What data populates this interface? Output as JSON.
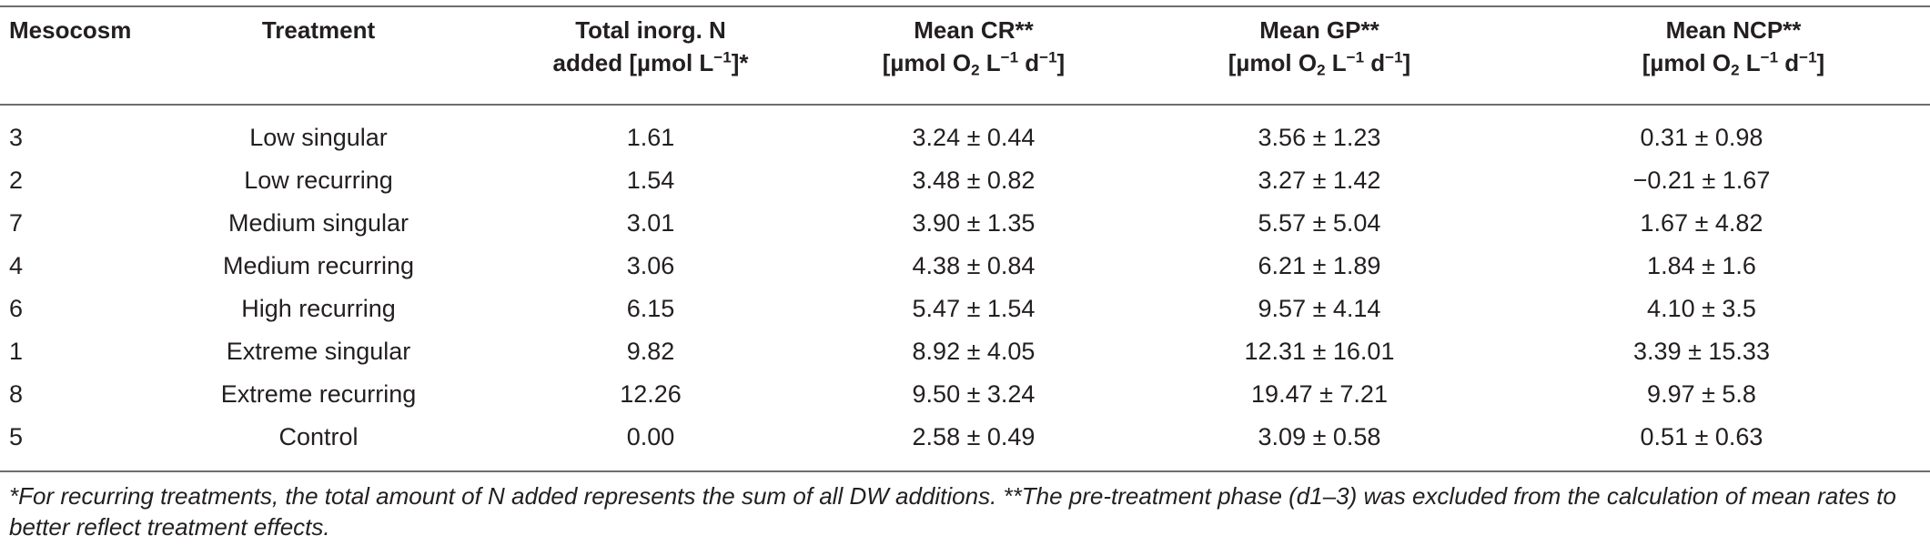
{
  "table": {
    "headers": {
      "mesocosm": "Mesocosm",
      "treatment": "Treatment",
      "n_added_line1": "Total inorg. N",
      "n_added_line2_pre": "added [µmol L",
      "n_added_line2_sup": "−1",
      "n_added_line2_post": "]*",
      "cr_line1": "Mean CR**",
      "gp_line1": "Mean GP**",
      "ncp_line1": "Mean NCP**",
      "unit_pre": "[µmol O",
      "unit_sub": "2",
      "unit_mid": " L",
      "unit_sup1": "−1",
      "unit_d": " d",
      "unit_sup2": "−1",
      "unit_post": "]"
    },
    "rows": [
      {
        "mesocosm": "3",
        "treatment": "Low singular",
        "n_added": "1.61",
        "cr": "3.24 ± 0.44",
        "gp": "3.56 ± 1.23",
        "ncp": "0.31 ± 0.98"
      },
      {
        "mesocosm": "2",
        "treatment": "Low recurring",
        "n_added": "1.54",
        "cr": "3.48 ± 0.82",
        "gp": "3.27 ± 1.42",
        "ncp": "−0.21 ± 1.67"
      },
      {
        "mesocosm": "7",
        "treatment": "Medium singular",
        "n_added": "3.01",
        "cr": "3.90 ± 1.35",
        "gp": "5.57 ± 5.04",
        "ncp": "1.67 ± 4.82"
      },
      {
        "mesocosm": "4",
        "treatment": "Medium recurring",
        "n_added": "3.06",
        "cr": "4.38 ± 0.84",
        "gp": "6.21 ± 1.89",
        "ncp": "1.84 ± 1.6"
      },
      {
        "mesocosm": "6",
        "treatment": "High recurring",
        "n_added": "6.15",
        "cr": "5.47 ± 1.54",
        "gp": "9.57 ± 4.14",
        "ncp": "4.10 ± 3.5"
      },
      {
        "mesocosm": "1",
        "treatment": "Extreme singular",
        "n_added": "9.82",
        "cr": "8.92 ± 4.05",
        "gp": "12.31 ± 16.01",
        "ncp": "3.39 ± 15.33"
      },
      {
        "mesocosm": "8",
        "treatment": "Extreme recurring",
        "n_added": "12.26",
        "cr": "9.50 ± 3.24",
        "gp": "19.47 ± 7.21",
        "ncp": "9.97 ± 5.8"
      },
      {
        "mesocosm": "5",
        "treatment": "Control",
        "n_added": "0.00",
        "cr": "2.58 ± 0.49",
        "gp": "3.09 ± 0.58",
        "ncp": "0.51 ± 0.63"
      }
    ]
  },
  "footnote": "*For recurring treatments, the total amount of N added represents the sum of all DW additions. **The pre-treatment phase (d1–3) was excluded from the calculation of mean rates to better reflect treatment effects."
}
